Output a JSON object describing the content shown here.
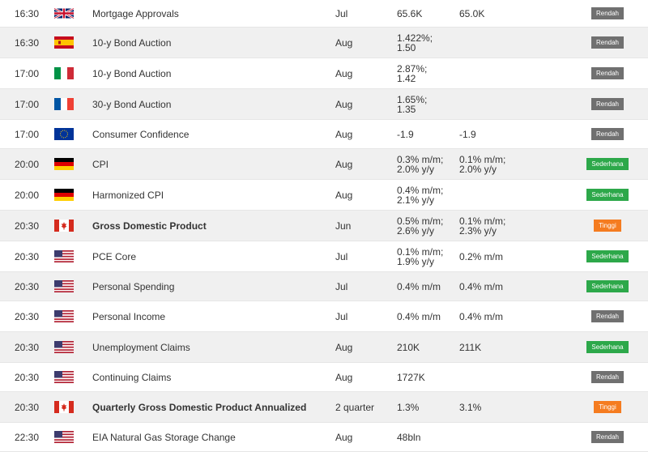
{
  "colors": {
    "Rendah": "#707070",
    "Sederhana": "#2da84a",
    "Tinggi": "#f57c20"
  },
  "rows": [
    {
      "time": "16:30",
      "flag": "uk-flag-icon",
      "event": "Mortgage Approvals",
      "bold": false,
      "period": "Jul",
      "actual": [
        "65.6K"
      ],
      "forecast": [
        "65.0K"
      ],
      "impact": "Rendah"
    },
    {
      "time": "16:30",
      "flag": "spain-flag-icon",
      "event": "10-y Bond Auction",
      "bold": false,
      "period": "Aug",
      "actual": [
        "1.422%;",
        "1.50"
      ],
      "forecast": [],
      "impact": "Rendah"
    },
    {
      "time": "17:00",
      "flag": "italy-flag-icon",
      "event": "10-y Bond Auction",
      "bold": false,
      "period": "Aug",
      "actual": [
        "2.87%;",
        "1.42"
      ],
      "forecast": [],
      "impact": "Rendah"
    },
    {
      "time": "17:00",
      "flag": "france-flag-icon",
      "event": "30-y Bond Auction",
      "bold": false,
      "period": "Aug",
      "actual": [
        "1.65%;",
        "1.35"
      ],
      "forecast": [],
      "impact": "Rendah"
    },
    {
      "time": "17:00",
      "flag": "eu-flag-icon",
      "event": "Consumer Confidence",
      "bold": false,
      "period": "Aug",
      "actual": [
        "-1.9"
      ],
      "forecast": [
        "-1.9"
      ],
      "impact": "Rendah"
    },
    {
      "time": "20:00",
      "flag": "germany-flag-icon",
      "event": "CPI",
      "bold": false,
      "period": "Aug",
      "actual": [
        "0.3% m/m;",
        "2.0% y/y"
      ],
      "forecast": [
        "0.1% m/m;",
        "2.0% y/y"
      ],
      "impact": "Sederhana"
    },
    {
      "time": "20:00",
      "flag": "germany-flag-icon",
      "event": "Harmonized CPI",
      "bold": false,
      "period": "Aug",
      "actual": [
        "0.4% m/m;",
        "2.1% y/y"
      ],
      "forecast": [],
      "impact": "Sederhana"
    },
    {
      "time": "20:30",
      "flag": "canada-flag-icon",
      "event": "Gross Domestic Product",
      "bold": true,
      "period": "Jun",
      "actual": [
        "0.5% m/m;",
        "2.6% y/y"
      ],
      "forecast": [
        "0.1% m/m;",
        "2.3% y/y"
      ],
      "impact": "Tinggi"
    },
    {
      "time": "20:30",
      "flag": "us-flag-icon",
      "event": "PCE Core",
      "bold": false,
      "period": "Jul",
      "actual": [
        "0.1% m/m;",
        "1.9% y/y"
      ],
      "forecast": [
        "0.2% m/m"
      ],
      "impact": "Sederhana"
    },
    {
      "time": "20:30",
      "flag": "us-flag-icon",
      "event": "Personal Spending",
      "bold": false,
      "period": "Jul",
      "actual": [
        "0.4% m/m"
      ],
      "forecast": [
        "0.4% m/m"
      ],
      "impact": "Sederhana"
    },
    {
      "time": "20:30",
      "flag": "us-flag-icon",
      "event": "Personal Income",
      "bold": false,
      "period": "Jul",
      "actual": [
        "0.4% m/m"
      ],
      "forecast": [
        "0.4% m/m"
      ],
      "impact": "Rendah"
    },
    {
      "time": "20:30",
      "flag": "us-flag-icon",
      "event": "Unemployment Claims",
      "bold": false,
      "period": "Aug",
      "actual": [
        "210K"
      ],
      "forecast": [
        "211K"
      ],
      "impact": "Sederhana"
    },
    {
      "time": "20:30",
      "flag": "us-flag-icon",
      "event": "Continuing Claims",
      "bold": false,
      "period": "Aug",
      "actual": [
        "1727K"
      ],
      "forecast": [],
      "impact": "Rendah"
    },
    {
      "time": "20:30",
      "flag": "canada-flag-icon",
      "event": "Quarterly Gross Domestic Product Annualized",
      "bold": true,
      "period": "2 quarter",
      "actual": [
        "1.3%"
      ],
      "forecast": [
        "3.1%"
      ],
      "impact": "Tinggi"
    },
    {
      "time": "22:30",
      "flag": "us-flag-icon",
      "event": "EIA Natural Gas Storage Change",
      "bold": false,
      "period": "Aug",
      "actual": [
        "48bln"
      ],
      "forecast": [],
      "impact": "Rendah"
    }
  ]
}
